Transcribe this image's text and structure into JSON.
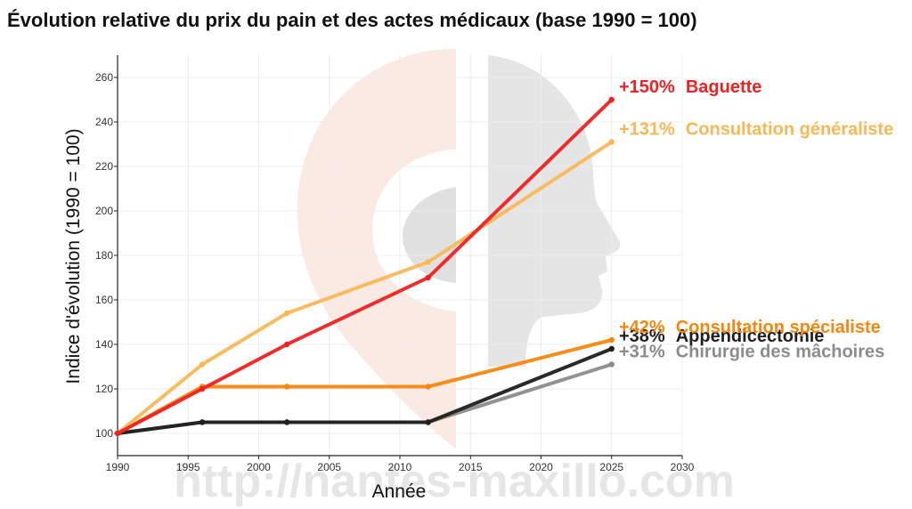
{
  "chart_data": {
    "type": "line",
    "title": "Évolution relative du prix du pain et des actes médicaux (base 1990 = 100)",
    "xlabel": "Année",
    "ylabel": "Indice d'évolution (1990 = 100)",
    "xlim": [
      1990,
      2030
    ],
    "ylim": [
      90,
      270
    ],
    "xticks": [
      1990,
      1995,
      2000,
      2005,
      2010,
      2015,
      2020,
      2025,
      2030
    ],
    "yticks": [
      100,
      120,
      140,
      160,
      180,
      200,
      220,
      240,
      260
    ],
    "grid": true,
    "watermark": "http://nantes-maxillo.com",
    "series": [
      {
        "name": "Chirurgie des mâchoires",
        "label": "+31%",
        "color": "#8c8c8c",
        "x": [
          1990,
          1996,
          2002,
          2012,
          2025
        ],
        "y": [
          100,
          105,
          105,
          105,
          131
        ]
      },
      {
        "name": "Appendicectomie",
        "label": "+38%",
        "color": "#1f1f1f",
        "x": [
          1990,
          1996,
          2002,
          2012,
          2025
        ],
        "y": [
          100,
          105,
          105,
          105,
          138
        ]
      },
      {
        "name": "Consultation spécialiste",
        "label": "+42%",
        "color": "#f7870f",
        "x": [
          1990,
          1996,
          2002,
          2012,
          2025
        ],
        "y": [
          100,
          121,
          121,
          121,
          142
        ]
      },
      {
        "name": "Consultation généraliste",
        "label": "+131%",
        "color": "#fbb756",
        "x": [
          1990,
          1996,
          2002,
          2012,
          2025
        ],
        "y": [
          100,
          131,
          154,
          177,
          231
        ]
      },
      {
        "name": "Baguette",
        "label": "+150%",
        "color": "#ee2222",
        "x": [
          1990,
          1996,
          2002,
          2012,
          2025
        ],
        "y": [
          100,
          120,
          140,
          170,
          250
        ]
      }
    ]
  }
}
